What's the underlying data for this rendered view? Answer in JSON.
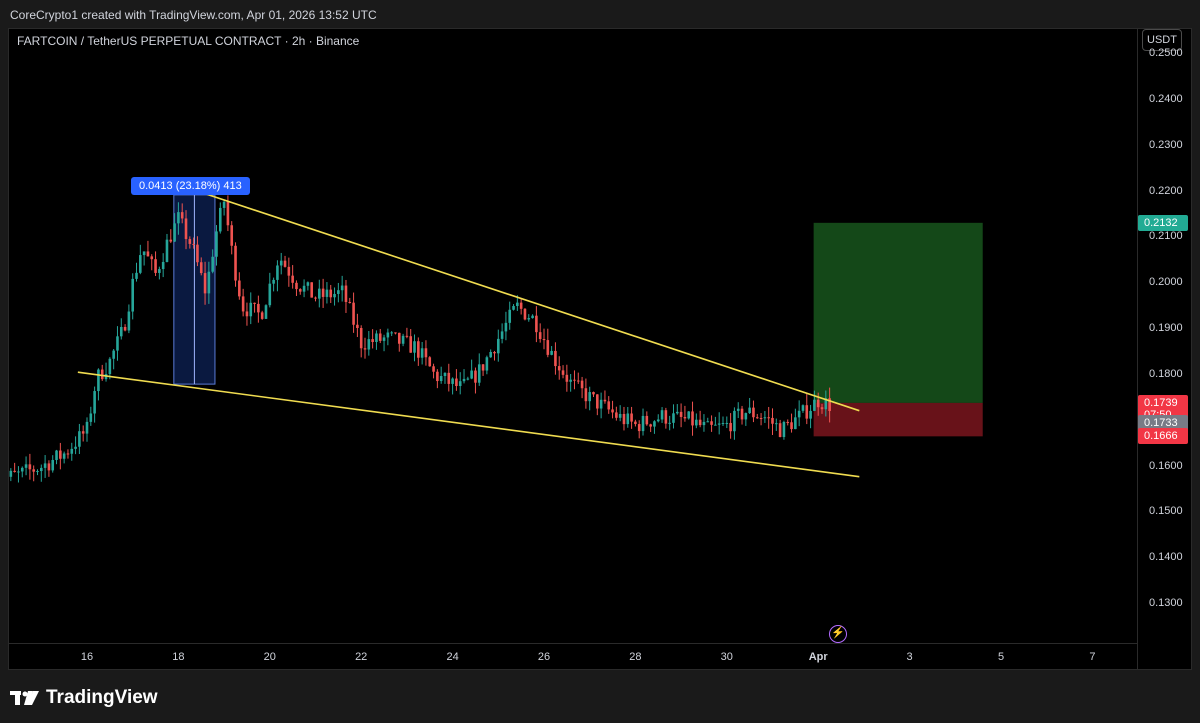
{
  "header": {
    "credit": "CoreCrypto1 created with TradingView.com, Apr 01, 2026 13:52 UTC"
  },
  "chart": {
    "symbol_title": "FARTCOIN / TetherUS PERPETUAL CONTRACT · 2h · Binance",
    "currency": "USDT",
    "measure_label": "0.0413 (23.18%) 413",
    "lightning_icon": "lightning-icon"
  },
  "footer": {
    "logo_text": "TradingView",
    "logo_icon": "tradingview-logo-icon"
  },
  "chart_data": {
    "type": "candlestick",
    "symbol": "FARTCOIN / TetherUS PERPETUAL CONTRACT",
    "interval": "2h",
    "exchange": "Binance",
    "y_ticks": [
      "0.1300",
      "0.1400",
      "0.1500",
      "0.1600",
      "0.1700",
      "0.1800",
      "0.1900",
      "0.2000",
      "0.2100",
      "0.2200",
      "0.2300",
      "0.2400",
      "0.2500"
    ],
    "y_range": [
      0.1215,
      0.2555
    ],
    "x_ticks": [
      "16",
      "18",
      "20",
      "22",
      "24",
      "26",
      "28",
      "30",
      "Apr",
      "3",
      "5",
      "7"
    ],
    "price_tags": [
      {
        "label": "0.2132",
        "price": 0.2132,
        "color": "#22ab94"
      },
      {
        "label": "0.1739",
        "price": 0.1739,
        "color": "#f23645"
      },
      {
        "label": "07:50",
        "price": 0.1712,
        "color": "#f23645"
      },
      {
        "label": "0.1733",
        "price": 0.1695,
        "color": "#787b86"
      },
      {
        "label": "0.1666",
        "price": 0.1666,
        "color": "#f23645"
      }
    ],
    "close_series": [
      {
        "day": 14.0,
        "close": 0.157
      },
      {
        "day": 14.5,
        "close": 0.1582
      },
      {
        "day": 15.0,
        "close": 0.16
      },
      {
        "day": 15.5,
        "close": 0.1628
      },
      {
        "day": 16.0,
        "close": 0.168
      },
      {
        "day": 16.2,
        "close": 0.179
      },
      {
        "day": 16.5,
        "close": 0.183
      },
      {
        "day": 16.8,
        "close": 0.19
      },
      {
        "day": 17.0,
        "close": 0.2
      },
      {
        "day": 17.2,
        "close": 0.208
      },
      {
        "day": 17.5,
        "close": 0.202
      },
      {
        "day": 17.8,
        "close": 0.21
      },
      {
        "day": 18.0,
        "close": 0.214
      },
      {
        "day": 18.3,
        "close": 0.208
      },
      {
        "day": 18.6,
        "close": 0.198
      },
      {
        "day": 18.8,
        "close": 0.21
      },
      {
        "day": 19.0,
        "close": 0.218
      },
      {
        "day": 19.2,
        "close": 0.205
      },
      {
        "day": 19.4,
        "close": 0.195
      },
      {
        "day": 19.8,
        "close": 0.193
      },
      {
        "day": 20.2,
        "close": 0.206
      },
      {
        "day": 20.6,
        "close": 0.2
      },
      {
        "day": 21.0,
        "close": 0.197
      },
      {
        "day": 21.6,
        "close": 0.198
      },
      {
        "day": 22.0,
        "close": 0.187
      },
      {
        "day": 22.6,
        "close": 0.188
      },
      {
        "day": 23.2,
        "close": 0.186
      },
      {
        "day": 23.6,
        "close": 0.18
      },
      {
        "day": 24.2,
        "close": 0.177
      },
      {
        "day": 24.6,
        "close": 0.181
      },
      {
        "day": 25.0,
        "close": 0.188
      },
      {
        "day": 25.4,
        "close": 0.195
      },
      {
        "day": 25.8,
        "close": 0.192
      },
      {
        "day": 26.2,
        "close": 0.184
      },
      {
        "day": 26.6,
        "close": 0.178
      },
      {
        "day": 27.0,
        "close": 0.175
      },
      {
        "day": 27.6,
        "close": 0.171
      },
      {
        "day": 28.0,
        "close": 0.169
      },
      {
        "day": 28.6,
        "close": 0.171
      },
      {
        "day": 29.2,
        "close": 0.17
      },
      {
        "day": 29.6,
        "close": 0.168
      },
      {
        "day": 30.0,
        "close": 0.169
      },
      {
        "day": 30.4,
        "close": 0.172
      },
      {
        "day": 30.8,
        "close": 0.171
      },
      {
        "day": 31.2,
        "close": 0.168
      },
      {
        "day": 31.6,
        "close": 0.171
      },
      {
        "day": 32.0,
        "close": 0.1745
      },
      {
        "day": 32.3,
        "close": 0.1733
      }
    ],
    "trendlines": [
      {
        "name": "upper",
        "from": {
          "day": 18.3,
          "price": 0.2205
        },
        "to": {
          "day": 32.9,
          "price": 0.1722
        },
        "color": "#f0dc50"
      },
      {
        "name": "lower",
        "from": {
          "day": 15.8,
          "price": 0.1806
        },
        "to": {
          "day": 32.9,
          "price": 0.1578
        },
        "color": "#f0dc50"
      }
    ],
    "measure_box": {
      "from_day": 17.9,
      "to_day": 18.8,
      "low": 0.178,
      "high": 0.2193
    },
    "position": {
      "from_day": 31.9,
      "to_day": 35.6,
      "entry": 0.1739,
      "target": 0.2132,
      "stop": 0.1666
    }
  }
}
